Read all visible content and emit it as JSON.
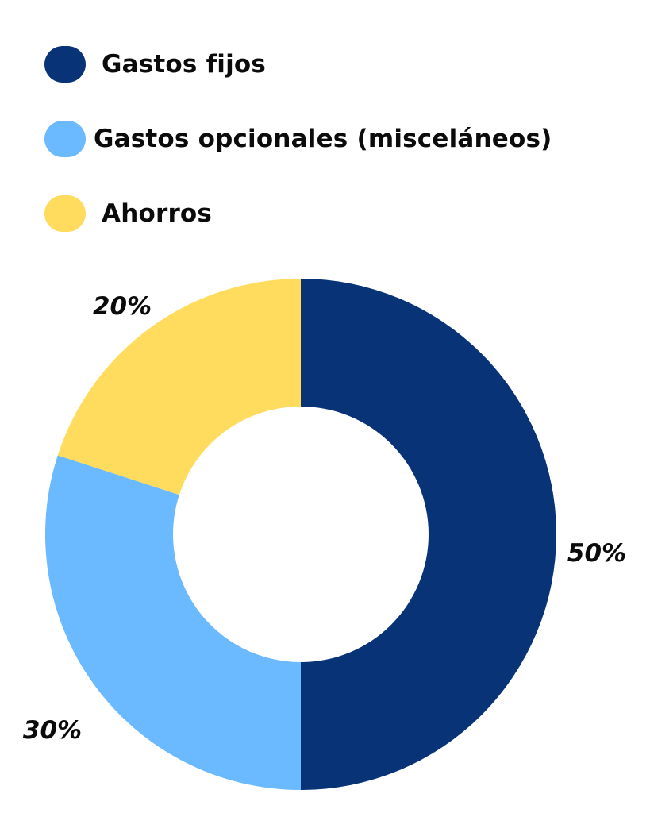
{
  "chart_data": {
    "type": "pie",
    "donut": true,
    "categories": [
      "Gastos fijos",
      "Gastos opcionales (misceláneos)",
      "Ahorros"
    ],
    "values": [
      50,
      30,
      20
    ],
    "value_labels": [
      "50%",
      "30%",
      "20%"
    ],
    "colors": [
      "#083477",
      "#6bb9ff",
      "#ffdb5e"
    ],
    "start": "12 o'clock",
    "direction": "clockwise",
    "legend": "top-left"
  }
}
